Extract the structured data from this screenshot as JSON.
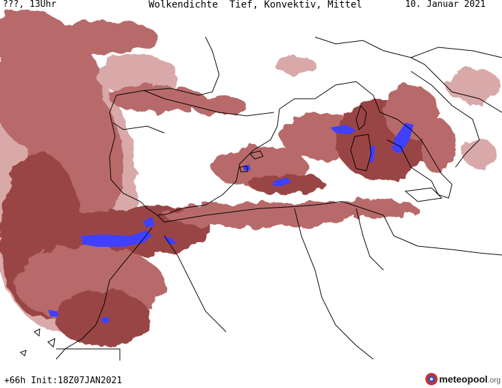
{
  "header": {
    "left": "???, 13Uhr",
    "title": "Wolkendichte  Tief, Konvektiv, Mittel",
    "date": "10. Januar 2021"
  },
  "footer": {
    "run": "+66h Init:18Z07JAN2021"
  },
  "logo": {
    "name": "meteopool",
    "tld": ".org"
  },
  "colors": {
    "cloud_light": "#d9a9a9",
    "cloud_mid": "#b86a6a",
    "cloud_dense": "#9a4444",
    "convective": "#4040ff",
    "coastline": "#000000",
    "background": "#ffffff",
    "logo_red": "#d42a2a",
    "logo_blue": "#2b57c8"
  }
}
